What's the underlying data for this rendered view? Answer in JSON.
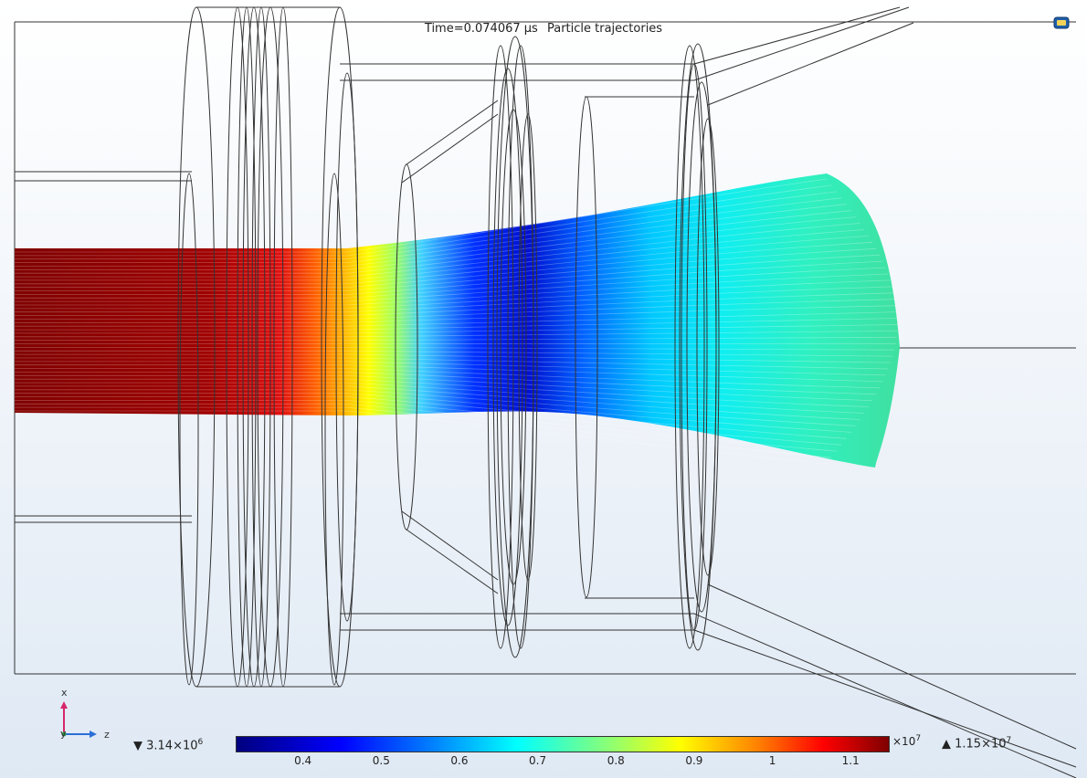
{
  "header": {
    "time_label": "Time=0.074067 µs",
    "plot_title": "Particle trajectories"
  },
  "triad": {
    "vertical": "x",
    "horizontal": "z",
    "out_of_plane": "y",
    "colors": {
      "x": "#d6266a",
      "z": "#2b6fd6",
      "y": "#2a9a4a"
    }
  },
  "colorbar": {
    "min_label": "▼ 3.14×10",
    "min_exp": "6",
    "max_label": "▲ 1.15×10",
    "max_exp": "7",
    "multiplier": "×10",
    "multiplier_exp": "7",
    "range": [
      0.314,
      1.15
    ],
    "ticks": [
      {
        "label": "0.4",
        "value": 0.4
      },
      {
        "label": "0.5",
        "value": 0.5
      },
      {
        "label": "0.6",
        "value": 0.6
      },
      {
        "label": "0.7",
        "value": 0.7
      },
      {
        "label": "0.8",
        "value": 0.8
      },
      {
        "label": "0.9",
        "value": 0.9
      },
      {
        "label": "1",
        "value": 1.0
      },
      {
        "label": "1.1",
        "value": 1.1
      }
    ],
    "colormap": [
      "#00007f",
      "#0000ff",
      "#0080ff",
      "#00ffff",
      "#80ff80",
      "#ffff00",
      "#ff8000",
      "#ff0000",
      "#7f0000"
    ]
  },
  "icons": {
    "toolbar": "camera-screen-icon"
  }
}
